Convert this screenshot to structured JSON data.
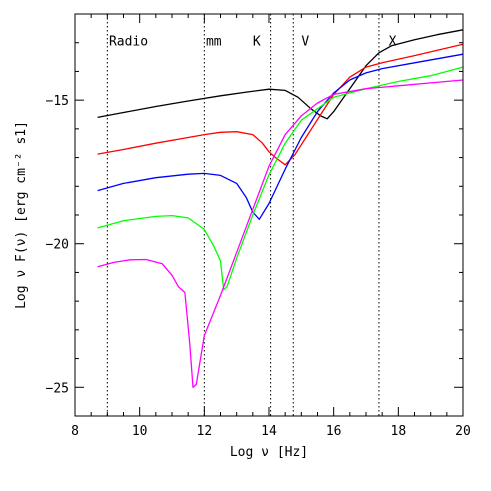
{
  "chart_data": {
    "type": "line",
    "title": "",
    "xlabel": "Log ν [Hz]",
    "ylabel": "Log ν F(ν) [erg cm⁻² s1]",
    "xlim": [
      8,
      20
    ],
    "ylim": [
      -26,
      -12
    ],
    "xticks": [
      8,
      10,
      12,
      14,
      16,
      18,
      20
    ],
    "yticks": [
      -25,
      -20,
      -15
    ],
    "xtick_labels": [
      "8",
      "10",
      "12",
      "14",
      "16",
      "18",
      "20"
    ],
    "ytick_labels": [
      "−25",
      "−20",
      "−15"
    ],
    "grid": false,
    "bands": [
      {
        "label": "Radio",
        "line_x": 9.0,
        "label_x": 9.05
      },
      {
        "label": "mm",
        "line_x": 12.0,
        "label_x": 12.05
      },
      {
        "label": "K",
        "line_x": 14.05,
        "label_x": 13.5
      },
      {
        "label": "V",
        "line_x": 14.75,
        "label_x": 15.0
      },
      {
        "label": "X",
        "line_x": 17.4,
        "label_x": 17.7
      }
    ],
    "band_label_y": -13.1,
    "series": [
      {
        "color": "#000000",
        "x": [
          8.7,
          9.5,
          10.5,
          11.5,
          12.5,
          13.3,
          14.0,
          14.5,
          14.9,
          15.3,
          15.6,
          15.8,
          16.0,
          16.5,
          17.0,
          17.4,
          17.8,
          18.5,
          19.2,
          20.0
        ],
        "y": [
          -15.6,
          -15.43,
          -15.22,
          -15.03,
          -14.85,
          -14.72,
          -14.62,
          -14.66,
          -14.9,
          -15.3,
          -15.55,
          -15.65,
          -15.4,
          -14.6,
          -13.8,
          -13.35,
          -13.1,
          -12.9,
          -12.72,
          -12.55
        ]
      },
      {
        "color": "#ff0000",
        "x": [
          8.7,
          9.5,
          10.5,
          11.5,
          12.0,
          12.5,
          13.0,
          13.5,
          13.8,
          14.0,
          14.2,
          14.5,
          14.8,
          15.2,
          15.6,
          16.0,
          16.5,
          17.0,
          17.5,
          18.5,
          20.0
        ],
        "y": [
          -16.88,
          -16.72,
          -16.5,
          -16.3,
          -16.2,
          -16.12,
          -16.1,
          -16.2,
          -16.5,
          -16.8,
          -17.0,
          -17.25,
          -16.9,
          -16.2,
          -15.5,
          -14.8,
          -14.2,
          -13.85,
          -13.7,
          -13.45,
          -13.05
        ]
      },
      {
        "color": "#0000ff",
        "x": [
          8.7,
          9.5,
          10.5,
          11.5,
          12.0,
          12.5,
          13.0,
          13.3,
          13.5,
          13.7,
          14.0,
          14.5,
          15.0,
          15.5,
          16.0,
          16.5,
          17.0,
          17.5,
          18.5,
          20.0
        ],
        "y": [
          -18.15,
          -17.9,
          -17.7,
          -17.58,
          -17.55,
          -17.62,
          -17.9,
          -18.4,
          -18.9,
          -19.15,
          -18.6,
          -17.4,
          -16.3,
          -15.4,
          -14.75,
          -14.3,
          -14.05,
          -13.9,
          -13.7,
          -13.4
        ]
      },
      {
        "color": "#00ff00",
        "x": [
          8.7,
          9.5,
          10.5,
          11.0,
          11.5,
          12.0,
          12.3,
          12.5,
          12.6,
          12.7,
          13.0,
          13.5,
          14.0,
          14.5,
          15.0,
          16.0,
          17.0,
          18.0,
          19.0,
          20.0
        ],
        "y": [
          -19.45,
          -19.2,
          -19.05,
          -19.02,
          -19.1,
          -19.5,
          -20.1,
          -20.6,
          -21.6,
          -21.5,
          -20.5,
          -19.0,
          -17.6,
          -16.5,
          -15.7,
          -14.9,
          -14.6,
          -14.35,
          -14.15,
          -13.85
        ]
      },
      {
        "color": "#ff00ff",
        "x": [
          8.7,
          9.2,
          9.7,
          10.2,
          10.7,
          11.0,
          11.2,
          11.4,
          11.55,
          11.65,
          11.75,
          12.0,
          12.5,
          13.0,
          13.5,
          14.0,
          14.5,
          15.0,
          15.5,
          16.0,
          17.0,
          18.0,
          19.0,
          20.0
        ],
        "y": [
          -20.8,
          -20.65,
          -20.56,
          -20.55,
          -20.7,
          -21.1,
          -21.5,
          -21.7,
          -23.5,
          -25.0,
          -24.9,
          -23.2,
          -21.8,
          -20.3,
          -18.8,
          -17.3,
          -16.2,
          -15.55,
          -15.1,
          -14.8,
          -14.6,
          -14.5,
          -14.4,
          -14.3
        ]
      }
    ]
  }
}
